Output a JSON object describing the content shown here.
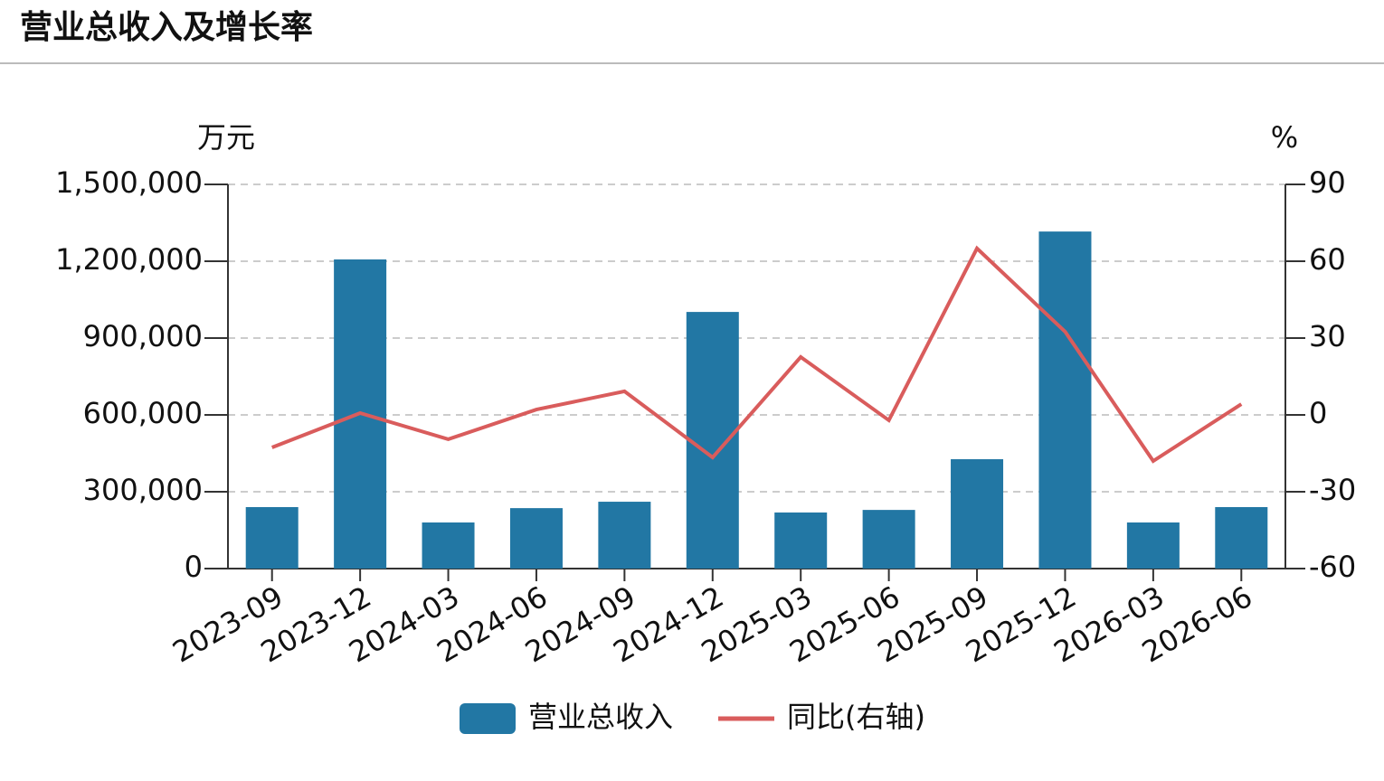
{
  "chart_data": {
    "type": "bar_line",
    "title": "营业总收入及增长率",
    "y_label": "万元",
    "y2_label": "%",
    "categories": [
      "2023-09",
      "2023-12",
      "2024-03",
      "2024-06",
      "2024-09",
      "2024-12",
      "2025-03",
      "2025-06",
      "2025-09",
      "2025-12",
      "2026-03",
      "2026-06"
    ],
    "series": [
      {
        "name": "营业总收入",
        "color": "#2277a4",
        "type": "bar",
        "values": [
          240000,
          1207000,
          180000,
          236000,
          261000,
          1002000,
          219000,
          229000,
          427000,
          1316000,
          180000,
          240000
        ]
      },
      {
        "name": "同比(右轴)",
        "color": "#d95c5c",
        "type": "line",
        "axis": "y2",
        "values": [
          -12.7,
          0.7,
          -9.5,
          2.1,
          9.2,
          -16.6,
          22.6,
          -2.1,
          65,
          32.5,
          -18,
          4.2
        ]
      }
    ],
    "ylim": [
      0,
      1500000
    ],
    "yticks": [
      0,
      {
        "value": 300000,
        "label": "300,000"
      },
      {
        "value": 600000,
        "label": "600,000"
      },
      {
        "value": 900000,
        "label": "900,000"
      },
      {
        "value": 1200000,
        "label": "1,200,000"
      },
      {
        "value": 1500000,
        "label": "1,500,000"
      }
    ],
    "y2lim": [
      -60,
      90
    ],
    "y2ticks": [
      -60,
      -30,
      0,
      30,
      60,
      90
    ],
    "grid": true
  }
}
